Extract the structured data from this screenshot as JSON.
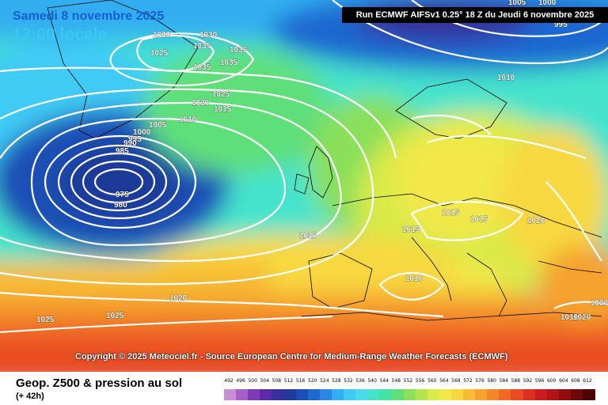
{
  "header": {
    "date": "Samedi 8 novembre 2025",
    "local_time": "13:00 locale",
    "run_info": "Run ECMWF AIFSv1 0.25° 18 Z du Jeudi 6 novembre 2025"
  },
  "copyright": "Copyright © 2025 Meteociel.fr - Source European Centre for Medium-Range Weather Forecasts (ECMWF)",
  "footer": {
    "product": "Geop. Z500 & pression au sol",
    "lead": "(+ 42h)"
  },
  "scale": {
    "values": [
      "492",
      "496",
      "500",
      "504",
      "508",
      "512",
      "516",
      "520",
      "524",
      "528",
      "532",
      "536",
      "540",
      "544",
      "548",
      "552",
      "556",
      "560",
      "564",
      "568",
      "572",
      "576",
      "580",
      "584",
      "588",
      "592",
      "596",
      "600",
      "604",
      "608",
      "612"
    ],
    "colors": [
      "#c78fd6",
      "#a65fc8",
      "#7f3ab8",
      "#5a2aa8",
      "#36309c",
      "#1f3a99",
      "#1a4fb5",
      "#1f68d0",
      "#2a88e3",
      "#33aef0",
      "#3fcbf5",
      "#48dceb",
      "#45e3cc",
      "#45e2a4",
      "#5fdf7a",
      "#8ae05a",
      "#b5e44c",
      "#d9ea4a",
      "#f2e84a",
      "#f8d840",
      "#f7be35",
      "#f5a22e",
      "#f2862a",
      "#ef6a27",
      "#e94c24",
      "#dd3022",
      "#c91d1d",
      "#b01414",
      "#8f0d0d",
      "#6e0707",
      "#4d0303"
    ]
  },
  "isobars": [
    {
      "label": "1030"
    },
    {
      "label": "1030"
    },
    {
      "label": "1025"
    },
    {
      "label": "1035"
    },
    {
      "label": "1035"
    },
    {
      "label": "1035"
    },
    {
      "label": "1035"
    },
    {
      "label": "1025"
    },
    {
      "label": "1020"
    },
    {
      "label": "1015"
    },
    {
      "label": "1010"
    },
    {
      "label": "1005"
    },
    {
      "label": "1000"
    },
    {
      "label": "995"
    },
    {
      "label": "990"
    },
    {
      "label": "985"
    },
    {
      "label": "975"
    },
    {
      "label": "980"
    },
    {
      "label": "1015"
    },
    {
      "label": "1015"
    },
    {
      "label": "1015"
    },
    {
      "label": "1015"
    },
    {
      "label": "1010"
    },
    {
      "label": "1020"
    },
    {
      "label": "1010"
    },
    {
      "label": "1020"
    },
    {
      "label": "1025"
    },
    {
      "label": "1025"
    },
    {
      "label": "1010"
    },
    {
      "label": "1020"
    },
    {
      "label": "1005"
    },
    {
      "label": "1000"
    },
    {
      "label": "995"
    },
    {
      "label": "1020"
    }
  ]
}
